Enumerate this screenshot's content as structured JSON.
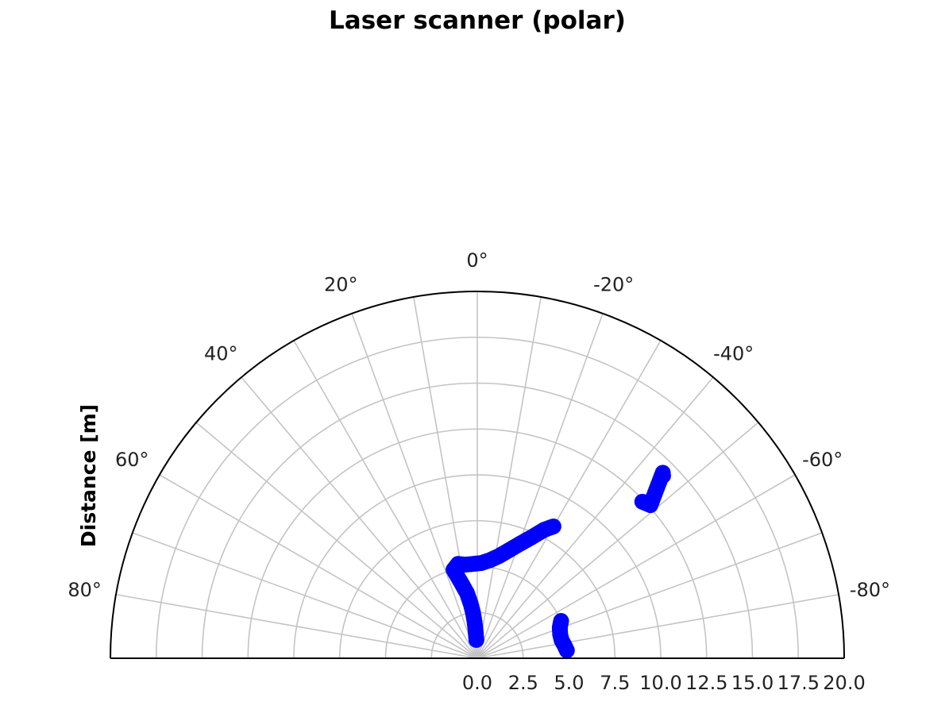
{
  "chart_data": {
    "type": "scatter",
    "projection": "polar",
    "title": "Laser scanner (polar)",
    "ylabel": "Distance [m]",
    "theta_range_deg": [
      -90,
      90
    ],
    "theta_zero_location": "top",
    "theta_direction": "counterclockwise",
    "r_range": [
      0,
      20
    ],
    "grid": true,
    "theta_tick_labels": [
      "80°",
      "60°",
      "40°",
      "20°",
      "0°",
      "-20°",
      "-40°",
      "-60°",
      "-80°"
    ],
    "theta_ticks_deg": [
      80,
      60,
      40,
      20,
      0,
      -20,
      -40,
      -60,
      -80
    ],
    "r_tick_labels": [
      "0.0",
      "2.5",
      "5.0",
      "7.5",
      "10.0",
      "12.5",
      "15.0",
      "17.5",
      "20.0"
    ],
    "r_ticks": [
      0,
      2.5,
      5,
      7.5,
      10,
      12.5,
      15,
      17.5,
      20
    ],
    "marker_color": "#0000ff",
    "series": [
      {
        "points": [
          {
            "theta": 2.9,
            "r": 1.0
          },
          {
            "theta": 3.5,
            "r": 1.5
          },
          {
            "theta": 4.3,
            "r": 2.0
          },
          {
            "theta": 5.4,
            "r": 2.5
          },
          {
            "theta": 6.9,
            "r": 3.0
          },
          {
            "theta": 9.0,
            "r": 3.6
          },
          {
            "theta": 12.0,
            "r": 4.2
          },
          {
            "theta": 15.0,
            "r": 5.0
          },
          {
            "theta": 11.5,
            "r": 5.25
          },
          {
            "theta": 7.5,
            "r": 5.15
          },
          {
            "theta": 2.5,
            "r": 5.15
          },
          {
            "theta": -2.5,
            "r": 5.2
          },
          {
            "theta": -7.5,
            "r": 5.4
          },
          {
            "theta": -12.0,
            "r": 5.7
          },
          {
            "theta": -16.0,
            "r": 6.1
          },
          {
            "theta": -20.0,
            "r": 6.6
          },
          {
            "theta": -24.0,
            "r": 7.2
          },
          {
            "theta": -27.5,
            "r": 7.9
          },
          {
            "theta": -30.0,
            "r": 8.3
          },
          {
            "theta": -85.0,
            "r": 4.9
          },
          {
            "theta": -81.5,
            "r": 4.8
          },
          {
            "theta": -78.0,
            "r": 4.7
          },
          {
            "theta": -74.0,
            "r": 4.7
          },
          {
            "theta": -69.5,
            "r": 4.8
          },
          {
            "theta": -66.0,
            "r": 5.0
          },
          {
            "theta": -46.5,
            "r": 12.4
          },
          {
            "theta": -47.5,
            "r": 12.5
          },
          {
            "theta": -48.5,
            "r": 12.6
          },
          {
            "theta": -45.0,
            "r": 14.3
          },
          {
            "theta": -45.5,
            "r": 14.2
          }
        ]
      }
    ]
  }
}
